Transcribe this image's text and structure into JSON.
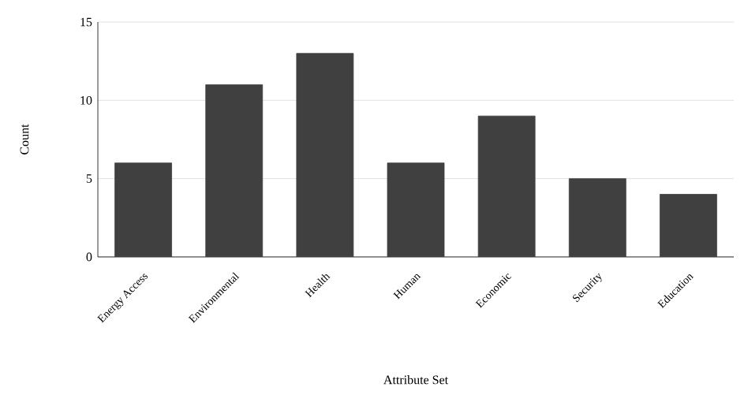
{
  "chart_data": {
    "type": "bar",
    "xlabel": "Attribute Set",
    "ylabel": "Count",
    "categories": [
      "Energy Access",
      "Environmental",
      "Health",
      "Human",
      "Economic",
      "Security",
      "Education"
    ],
    "values": [
      6,
      11,
      13,
      6,
      9,
      5,
      4
    ],
    "color": "#404040",
    "ylim": [
      0,
      15
    ],
    "yticks": [
      0,
      5,
      10,
      15
    ],
    "grid": "y"
  }
}
